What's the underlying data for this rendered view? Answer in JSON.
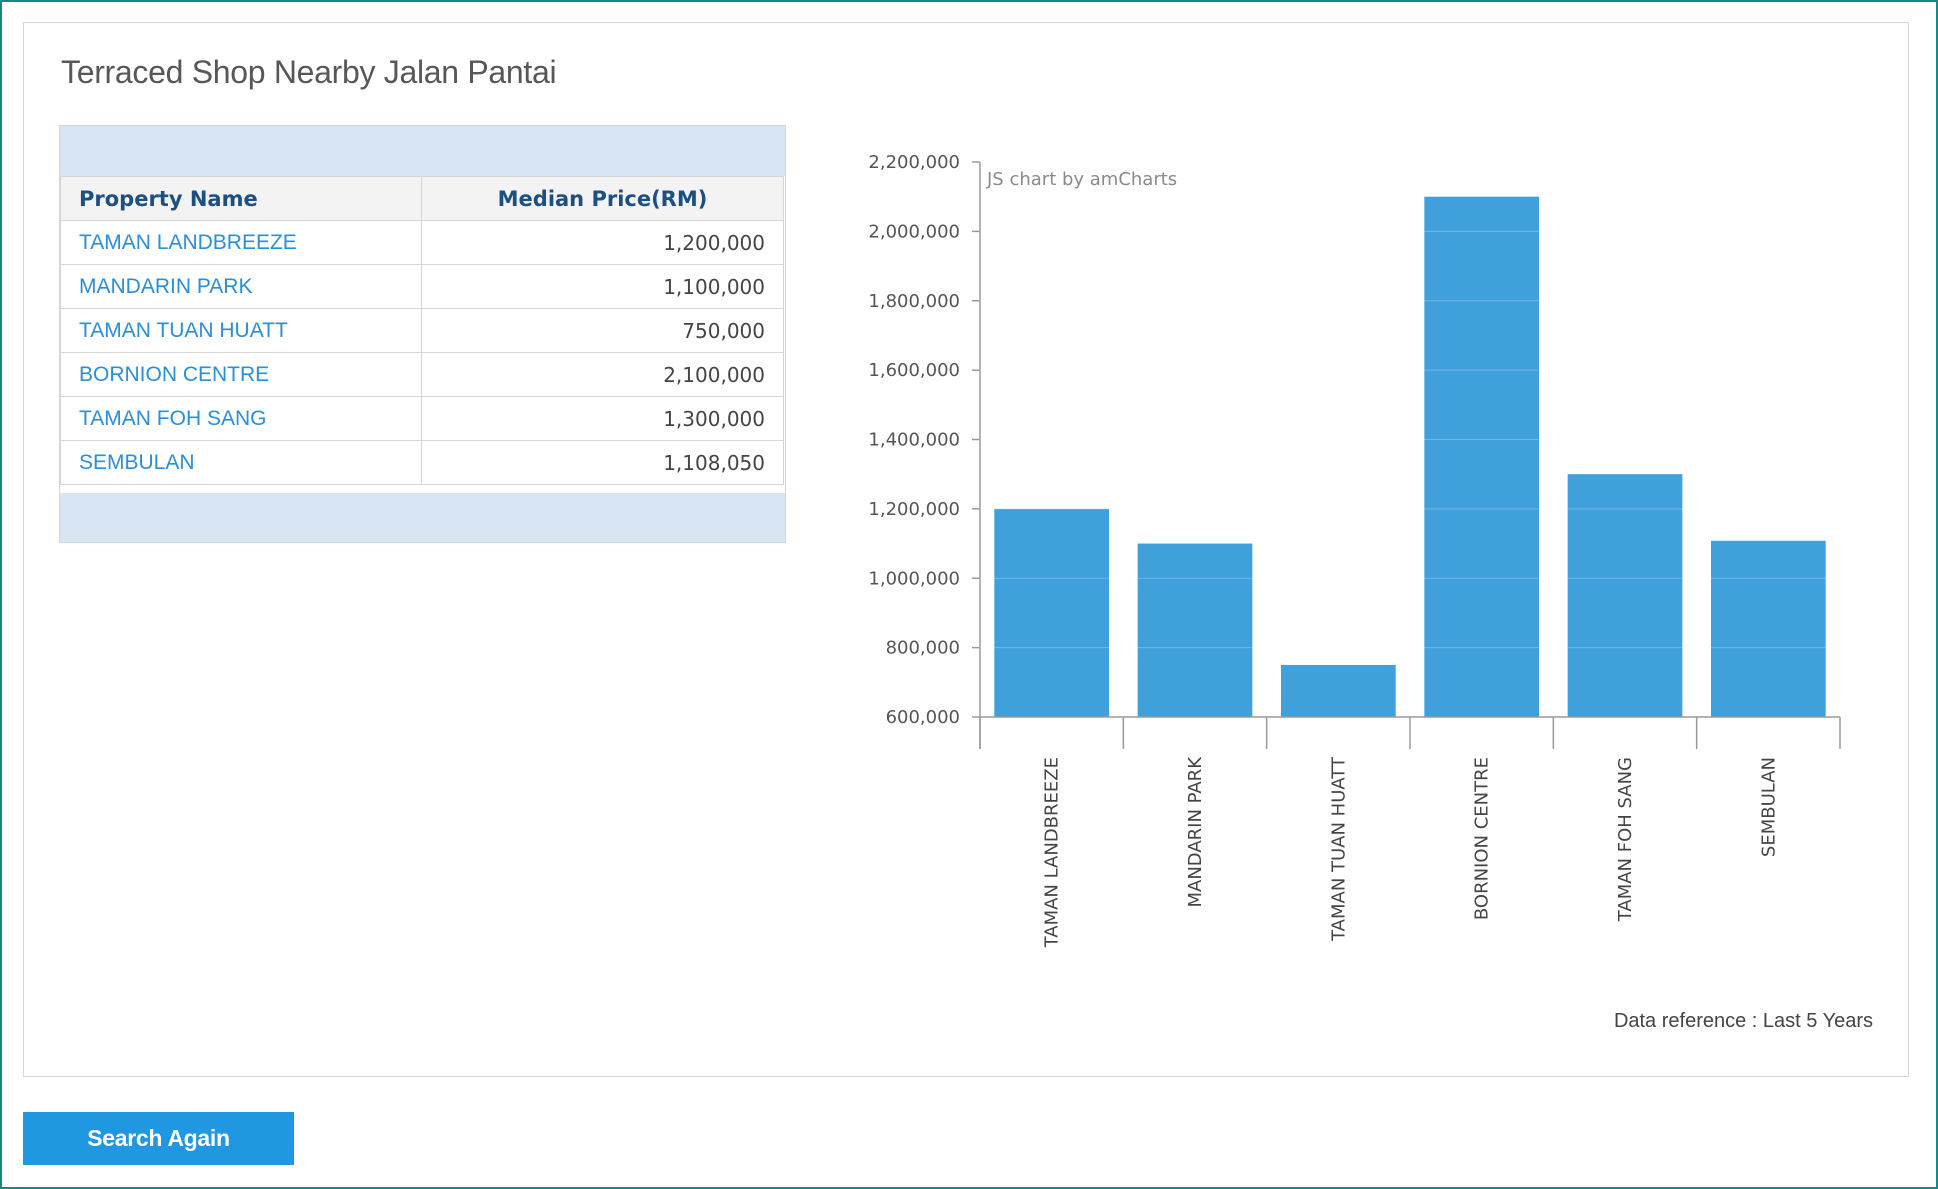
{
  "page": {
    "title": "Terraced Shop Nearby Jalan Pantai"
  },
  "table": {
    "columns": [
      "Property Name",
      "Median Price(RM)"
    ],
    "rows": [
      {
        "name": "TAMAN LANDBREEZE",
        "price": "1,200,000"
      },
      {
        "name": "MANDARIN PARK",
        "price": "1,100,000"
      },
      {
        "name": "TAMAN TUAN HUATT",
        "price": "750,000"
      },
      {
        "name": "BORNION CENTRE",
        "price": "2,100,000"
      },
      {
        "name": "TAMAN FOH SANG",
        "price": "1,300,000"
      },
      {
        "name": "SEMBULAN",
        "price": "1,108,050"
      }
    ]
  },
  "chart_data": {
    "type": "bar",
    "categories": [
      "TAMAN LANDBREEZE",
      "MANDARIN PARK",
      "TAMAN TUAN HUATT",
      "BORNION CENTRE",
      "TAMAN FOH SANG",
      "SEMBULAN"
    ],
    "values": [
      1200000,
      1100000,
      750000,
      2100000,
      1300000,
      1108050
    ],
    "ylim": [
      600000,
      2200000
    ],
    "yticks": [
      600000,
      800000,
      1000000,
      1200000,
      1400000,
      1600000,
      1800000,
      2000000,
      2200000
    ],
    "ytick_labels": [
      "600,000",
      "800,000",
      "1,000,000",
      "1,200,000",
      "1,400,000",
      "1,600,000",
      "1,800,000",
      "2,000,000",
      "2,200,000"
    ],
    "credit": "JS chart by amCharts",
    "bar_color": "#3fa0dc",
    "grid": true
  },
  "footer": {
    "data_reference": "Data reference : Last 5 Years"
  },
  "actions": {
    "search_again": "Search Again"
  },
  "colors": {
    "accent": "#1f98e1",
    "link": "#2a8fd9",
    "header_text": "#1c4f84",
    "frame": "#148a82"
  }
}
